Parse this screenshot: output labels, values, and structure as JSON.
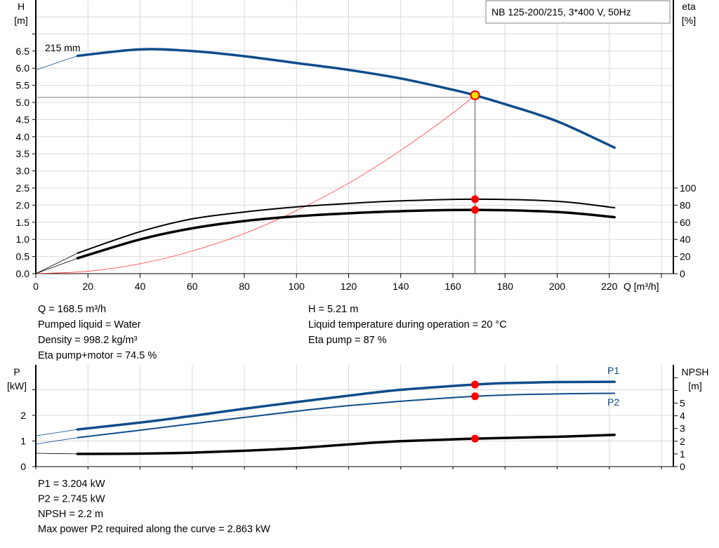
{
  "title_box": "NB 125-200/215, 3*400 V, 50Hz",
  "colors": {
    "head_curve": "#0e4d8a",
    "eta_curves": "#000000",
    "system_curve": "#ff3b3b",
    "operating_point": "#ff0000",
    "duty_marker": "#ffe000",
    "grid": "#d9d9d9"
  },
  "chart_data": [
    {
      "type": "line",
      "xlabel": "Q [m³/h]",
      "ylabel_left": [
        "H",
        "[m]"
      ],
      "ylabel_right": [
        "eta",
        "[%]"
      ],
      "xlim": [
        0,
        240
      ],
      "ylim_left": [
        0,
        8
      ],
      "ylim_right": [
        0,
        320
      ],
      "x_ticks": [
        0,
        20,
        40,
        60,
        80,
        100,
        120,
        140,
        160,
        180,
        200,
        220
      ],
      "y_ticks_left": [
        "0.0",
        "0.5",
        "1.0",
        "1.5",
        "2.0",
        "2.5",
        "3.0",
        "3.5",
        "4.0",
        "4.5",
        "5.0",
        "5.5",
        "6.0",
        "6.5"
      ],
      "y_ticks_right": [
        0,
        20,
        40,
        60,
        80,
        100
      ],
      "grid": true,
      "series": [
        {
          "name": "215 mm",
          "axis": "left",
          "x": [
            0,
            16,
            40,
            60,
            80,
            100,
            120,
            140,
            160,
            168.5,
            180,
            200,
            222
          ],
          "y": [
            5.95,
            6.36,
            6.55,
            6.5,
            6.35,
            6.15,
            5.95,
            5.7,
            5.37,
            5.21,
            4.95,
            4.45,
            3.68
          ]
        },
        {
          "axis": "right",
          "x": [
            0,
            16,
            40,
            60,
            80,
            100,
            120,
            140,
            168.5,
            200,
            222
          ],
          "y": [
            0,
            24,
            49,
            64,
            72,
            78,
            82,
            85,
            87,
            84.5,
            77
          ]
        },
        {
          "axis": "right",
          "x": [
            0,
            16,
            40,
            60,
            80,
            100,
            120,
            140,
            168.5,
            200,
            222
          ],
          "y": [
            0,
            18,
            40,
            53,
            61.5,
            67,
            70.5,
            73,
            74.5,
            72,
            66
          ]
        },
        {
          "axis": "left",
          "system_curve": true,
          "x": [
            0,
            20,
            40,
            60,
            80,
            100,
            120,
            140,
            160,
            168.5
          ],
          "y": [
            0,
            0.07,
            0.29,
            0.66,
            1.17,
            1.84,
            2.64,
            3.6,
            4.69,
            5.21
          ]
        }
      ],
      "operating_point": {
        "Q": 168.5,
        "H": 5.21,
        "eta_pump": 87,
        "eta_pump_motor": 74.5
      }
    },
    {
      "type": "line",
      "ylabel_left": [
        "P",
        "[kW]"
      ],
      "ylabel_right": [
        "NPSH",
        "[m]"
      ],
      "xlim": [
        0,
        240
      ],
      "ylim_left": [
        0,
        4
      ],
      "ylim_right": [
        0,
        8
      ],
      "y_ticks_left": [
        "0",
        "1",
        "2"
      ],
      "y_ticks_right": [
        "0",
        "1",
        "2",
        "3",
        "4",
        "5"
      ],
      "grid": true,
      "series": [
        {
          "name": "P1",
          "axis": "left",
          "x": [
            0,
            16,
            40,
            60,
            80,
            100,
            120,
            140,
            168.5,
            180,
            200,
            222
          ],
          "y": [
            1.2,
            1.45,
            1.72,
            1.98,
            2.26,
            2.52,
            2.77,
            3.0,
            3.204,
            3.26,
            3.3,
            3.31
          ]
        },
        {
          "name": "P2",
          "axis": "left",
          "x": [
            0,
            16,
            40,
            80,
            120,
            168.5,
            200,
            222
          ],
          "y": [
            0.88,
            1.13,
            1.42,
            1.92,
            2.38,
            2.745,
            2.84,
            2.863
          ]
        },
        {
          "name": "NPSH",
          "axis": "right",
          "x": [
            0,
            16,
            40,
            60,
            80,
            100,
            120,
            140,
            168.5,
            200,
            222
          ],
          "y": [
            1.05,
            1.0,
            1.02,
            1.1,
            1.25,
            1.45,
            1.75,
            2.0,
            2.2,
            2.35,
            2.5
          ]
        }
      ]
    }
  ],
  "info_top": {
    "left": [
      "Q = 168.5 m³/h",
      "Pumped liquid = Water",
      "Density = 998.2 kg/m³",
      "Eta pump+motor = 74.5 %"
    ],
    "right": [
      "H = 5.21 m",
      "Liquid temperature during operation = 20 °C",
      "Eta pump = 87 %"
    ]
  },
  "info_bottom": [
    "P1 = 3.204 kW",
    "P2 = 2.745 kW",
    "NPSH = 2.2 m",
    "Max power P2 required along the curve = 2.863 kW"
  ]
}
